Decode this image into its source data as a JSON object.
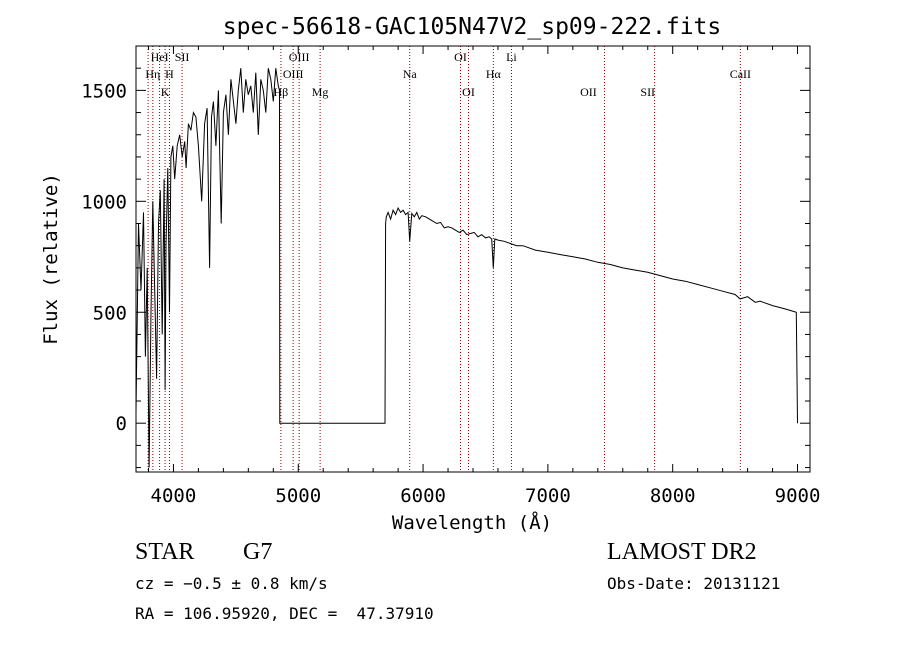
{
  "chart_data": {
    "type": "line",
    "title": "spec-56618-GAC105N47V2_sp09-222.fits",
    "xlabel": "Wavelength (Å)",
    "ylabel": "Flux (relative)",
    "xlim": [
      3700,
      9100
    ],
    "ylim": [
      -220,
      1700
    ],
    "x_ticks": [
      4000,
      5000,
      6000,
      7000,
      8000,
      9000
    ],
    "y_ticks": [
      0,
      500,
      1000,
      1500
    ],
    "grid": false,
    "series": [
      {
        "x": [
          3700,
          3720,
          3740,
          3760,
          3775,
          3790,
          3805,
          3820,
          3835,
          3850,
          3865,
          3880,
          3895,
          3910,
          3925,
          3933,
          3940,
          3955,
          3968,
          3980,
          3995,
          4010,
          4030,
          4050,
          4070,
          4090,
          4101,
          4120,
          4140,
          4160,
          4180,
          4200,
          4226,
          4250,
          4270,
          4290,
          4305,
          4320,
          4340,
          4360,
          4383,
          4400,
          4420,
          4440,
          4460,
          4480,
          4500,
          4520,
          4540,
          4560,
          4580,
          4600,
          4620,
          4640,
          4660,
          4680,
          4700,
          4720,
          4740,
          4760,
          4780,
          4800,
          4820,
          4840,
          4850,
          4852,
          4900,
          5000,
          5100,
          5200,
          5300,
          5400,
          5500,
          5600,
          5695,
          5700,
          5705,
          5720,
          5740,
          5760,
          5780,
          5800,
          5820,
          5840,
          5860,
          5880,
          5893,
          5910,
          5930,
          5950,
          5970,
          5990,
          6020,
          6050,
          6080,
          6110,
          6140,
          6170,
          6200,
          6230,
          6260,
          6290,
          6320,
          6350,
          6380,
          6410,
          6440,
          6470,
          6500,
          6530,
          6550,
          6563,
          6575,
          6600,
          6650,
          6700,
          6750,
          6800,
          6900,
          7000,
          7100,
          7200,
          7300,
          7400,
          7500,
          7600,
          7700,
          7800,
          7900,
          8000,
          8100,
          8200,
          8300,
          8400,
          8500,
          8540,
          8600,
          8662,
          8700,
          8800,
          8900,
          8990,
          9000
        ],
        "y": [
          50,
          900,
          600,
          950,
          300,
          700,
          -200,
          500,
          1000,
          600,
          200,
          900,
          1050,
          400,
          1100,
          150,
          800,
          1150,
          500,
          1200,
          1250,
          1100,
          1250,
          1300,
          1200,
          1270,
          1150,
          1350,
          1320,
          1400,
          1380,
          1250,
          1000,
          1350,
          1420,
          700,
          1380,
          1450,
          1250,
          1500,
          900,
          1400,
          1480,
          1300,
          1550,
          1450,
          1350,
          1500,
          1600,
          1400,
          1550,
          1480,
          1520,
          1400,
          1580,
          1300,
          1550,
          1500,
          1400,
          1600,
          1550,
          1450,
          1600,
          1520,
          1500,
          0,
          0,
          0,
          0,
          0,
          0,
          0,
          0,
          0,
          0,
          900,
          930,
          950,
          920,
          960,
          940,
          970,
          950,
          960,
          940,
          950,
          820,
          945,
          930,
          950,
          920,
          935,
          930,
          920,
          910,
          900,
          905,
          880,
          885,
          880,
          870,
          860,
          870,
          850,
          855,
          860,
          840,
          850,
          835,
          840,
          830,
          700,
          830,
          825,
          820,
          810,
          800,
          800,
          780,
          770,
          760,
          750,
          740,
          725,
          715,
          700,
          690,
          680,
          665,
          650,
          640,
          625,
          610,
          595,
          580,
          560,
          570,
          545,
          550,
          530,
          515,
          500,
          0
        ]
      }
    ],
    "line_annotations": [
      {
        "label": "HeI",
        "x": 3889,
        "row": 0
      },
      {
        "label": "SII",
        "x": 4069,
        "row": 0
      },
      {
        "label": "OIII",
        "x": 5007,
        "row": 0
      },
      {
        "label": "OI",
        "x": 6300,
        "row": 0
      },
      {
        "label": "Li",
        "x": 6708,
        "row": 0
      },
      {
        "label": "Hη",
        "x": 3835,
        "row": 1
      },
      {
        "label": "H",
        "x": 3968,
        "row": 1
      },
      {
        "label": "OIII",
        "x": 4959,
        "row": 1
      },
      {
        "label": "Na",
        "x": 5893,
        "row": 1
      },
      {
        "label": "Hα",
        "x": 6563,
        "row": 1
      },
      {
        "label": "CaII",
        "x": 8542,
        "row": 1
      },
      {
        "label": "K",
        "x": 3933,
        "row": 2
      },
      {
        "label": "Hβ",
        "x": 4861,
        "row": 2
      },
      {
        "label": "Mg",
        "x": 5175,
        "row": 2
      },
      {
        "label": "OI",
        "x": 6364,
        "row": 2
      },
      {
        "label": "OII",
        "x": 7325,
        "row": 2
      },
      {
        "label": "SII",
        "x": 7800,
        "row": 2
      }
    ],
    "line_marker_color": "#8b0000",
    "line_marker_x": [
      3797,
      3835,
      3889,
      3933,
      3968,
      4069,
      4861,
      4959,
      5007,
      5175,
      5893,
      6300,
      6364,
      6563,
      6708,
      7453,
      7855,
      8542
    ]
  },
  "info": {
    "object_class": "STAR",
    "subclass": "G7",
    "redshift": "cz = −0.5 ± 0.8 km/s",
    "coords": "RA = 106.95920, DEC =  47.37910",
    "survey": "LAMOST DR2",
    "obs_date": "Obs-Date: 20131121"
  }
}
